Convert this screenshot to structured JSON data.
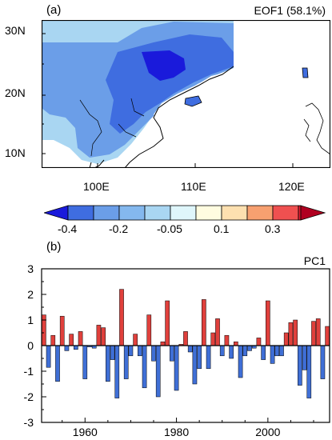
{
  "panel_a": {
    "label": "(a)",
    "title": "EOF1 (58.1%)",
    "lat_ticks": [
      "30N",
      "20N",
      "10N"
    ],
    "lon_ticks": [
      "100E",
      "110E",
      "120E"
    ]
  },
  "colorbar": {
    "colors": [
      "#1a1adb",
      "#3f6de0",
      "#6b9ee8",
      "#a9d6f2",
      "#dff6fb",
      "#fffce0",
      "#fde0b0",
      "#f7a070",
      "#ef5050",
      "#e01c30",
      "#b00020"
    ],
    "labels": [
      "-0.4",
      "-0.2",
      "-0.05",
      "0.1",
      "0.3"
    ]
  },
  "panel_b": {
    "label": "(b)",
    "title": "PC1"
  },
  "chart_data": {
    "type": "bar",
    "title": "PC1",
    "xlim": [
      1950.5,
      2013.5
    ],
    "ylim": [
      -3,
      3
    ],
    "yticks": [
      3,
      2,
      1,
      0,
      -1,
      -2,
      -3
    ],
    "xticks": [
      1960,
      1980,
      2000
    ],
    "positive_color": "#e0403c",
    "negative_color": "#3f6fd6",
    "years": [
      1951,
      1952,
      1953,
      1954,
      1955,
      1956,
      1957,
      1958,
      1959,
      1960,
      1961,
      1962,
      1963,
      1964,
      1965,
      1966,
      1967,
      1968,
      1969,
      1970,
      1971,
      1972,
      1973,
      1974,
      1975,
      1976,
      1977,
      1978,
      1979,
      1980,
      1981,
      1982,
      1983,
      1984,
      1985,
      1986,
      1987,
      1988,
      1989,
      1990,
      1991,
      1992,
      1993,
      1994,
      1995,
      1996,
      1997,
      1998,
      1999,
      2000,
      2001,
      2002,
      2003,
      2004,
      2005,
      2006,
      2007,
      2008,
      2009,
      2010,
      2011,
      2012,
      2013
    ],
    "values": [
      1.2,
      -0.85,
      0.4,
      -1.4,
      1.15,
      -0.2,
      0.45,
      -0.15,
      0.55,
      -1.3,
      -0.05,
      -0.1,
      0.8,
      0.7,
      -1.4,
      -0.55,
      -2.05,
      2.2,
      -1.3,
      -0.4,
      0.45,
      -0.4,
      -1.65,
      1.2,
      -0.6,
      -2.0,
      0.15,
      1.75,
      -0.6,
      -1.75,
      0.05,
      0.55,
      -0.25,
      -1.5,
      -0.9,
      1.8,
      -0.9,
      0.5,
      1.05,
      -0.4,
      0.4,
      -0.5,
      0.15,
      -1.25,
      -0.4,
      -0.2,
      -0.1,
      0.3,
      -0.55,
      1.75,
      -0.7,
      -0.4,
      -0.4,
      0.5,
      0.9,
      1.0,
      -1.55,
      -0.95,
      -2.05,
      0.95,
      1.05,
      -1.3,
      0.75
    ]
  }
}
